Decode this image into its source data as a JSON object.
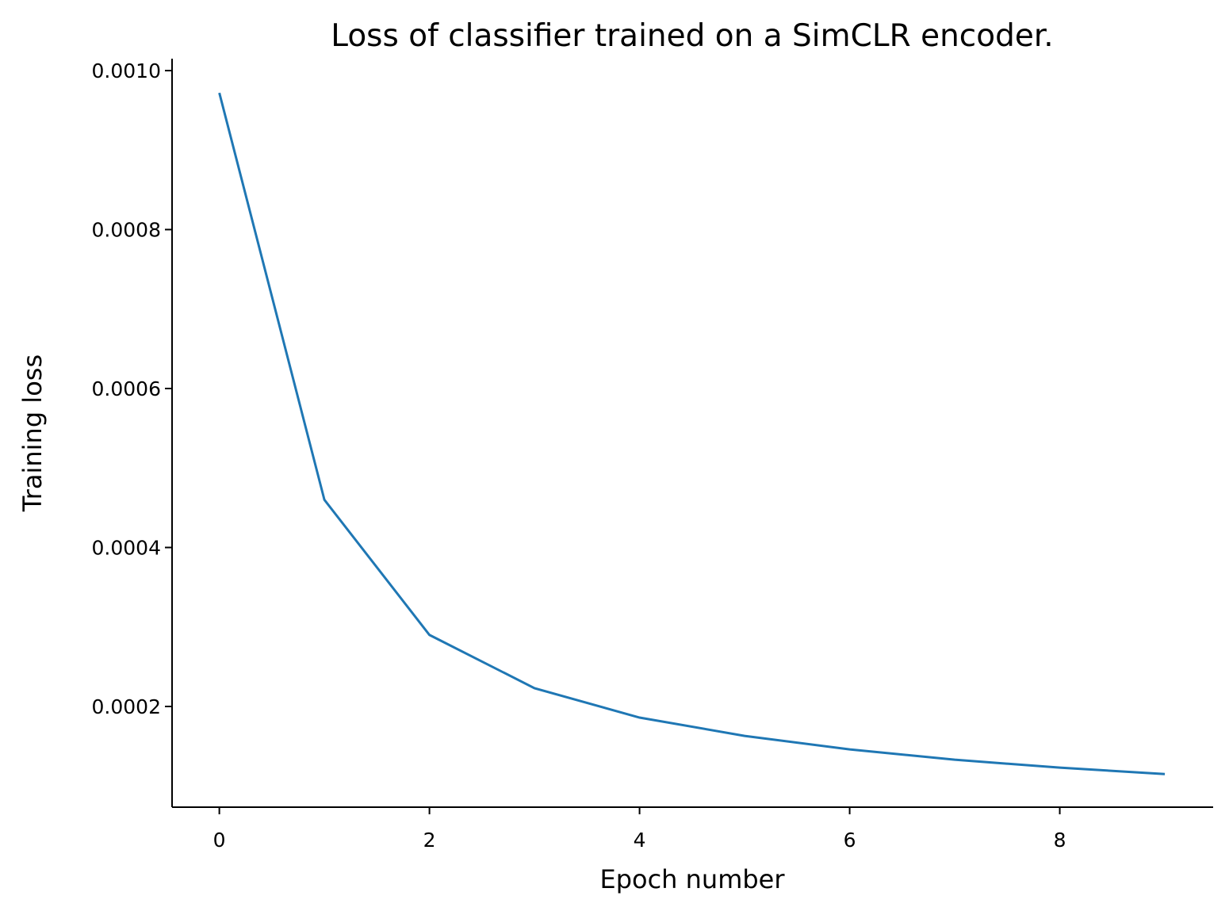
{
  "chart_data": {
    "type": "line",
    "title": "Loss of classifier trained on a SimCLR encoder.",
    "xlabel": "Epoch number",
    "ylabel": "Training loss",
    "x": [
      0,
      1,
      2,
      3,
      4,
      5,
      6,
      7,
      8,
      9
    ],
    "series": [
      {
        "values": [
          0.000972,
          0.00046,
          0.00029,
          0.000223,
          0.000186,
          0.000163,
          0.000146,
          0.000133,
          0.000123,
          0.000115
        ],
        "color": "#1f77b4"
      }
    ],
    "xlim": [
      -0.45,
      9.46
    ],
    "ylim": [
      7.33e-05,
      0.001015
    ],
    "xticks": [
      0,
      2,
      4,
      6,
      8
    ],
    "xtick_labels": [
      "0",
      "2",
      "4",
      "6",
      "8"
    ],
    "yticks": [
      0.0002,
      0.0004,
      0.0006,
      0.0008,
      0.001
    ],
    "ytick_labels": [
      "0.0002",
      "0.0004",
      "0.0006",
      "0.0008",
      "0.0010"
    ],
    "grid": false,
    "spines": [
      "left",
      "bottom"
    ]
  }
}
